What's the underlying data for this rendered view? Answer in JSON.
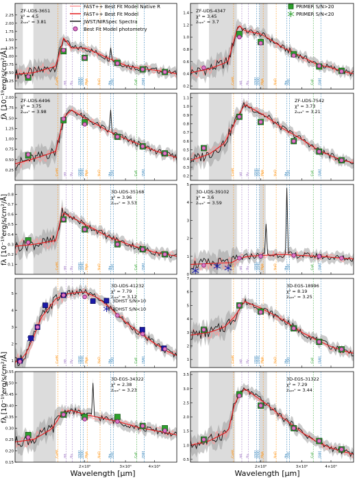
{
  "figure": {
    "ylabel": "fλ [10⁻¹⁹erg/s/cm²/Å]",
    "xlabel": "Wavelength [μm]",
    "xtick_labels": [
      "2×10⁰",
      "3×10⁰",
      "4×10⁰"
    ],
    "lines": [
      {
        "label": "CaHK",
        "x": 1.53,
        "color": "#ff8c00"
      },
      {
        "label": "Hδ",
        "x": 1.66,
        "color": "#9467bd"
      },
      {
        "label": "Hγ",
        "x": 1.77,
        "color": "#9467bd"
      },
      {
        "label": "[OIII]",
        "x": 1.92,
        "color": "#1f77b4"
      },
      {
        "label": "[OIII]",
        "x": 1.97,
        "color": "#1f77b4"
      },
      {
        "label": "Mgb",
        "x": 2.05,
        "color": "#ff8c00"
      },
      {
        "label": "NaD",
        "x": 2.33,
        "color": "#ff8c00"
      },
      {
        "label": "Hα",
        "x": 2.59,
        "color": "#1f77b4"
      },
      {
        "label": "[SII]",
        "x": 2.66,
        "color": "#1f77b4"
      },
      {
        "label": "CaII",
        "x": 3.36,
        "color": "#2ca02c"
      },
      {
        "label": "[SIII]",
        "x": 3.62,
        "color": "#1f77b4"
      }
    ],
    "colors": {
      "data": "#111111",
      "data_err": "#9e9e9e",
      "native": "#ff9a9a",
      "model": "#e41a1c",
      "phot_face": "#e377c2",
      "phot_edge": "#7a1f7a",
      "primer_face": "#2ca02c",
      "primer_edge": "#115511",
      "dhst": "#1a1aa8",
      "shade": "#dcdcdc"
    }
  },
  "legends": {
    "main": [
      "FAST++ Best Fit Model Native R",
      "FAST++ Best Fit Model",
      "JWST/NIRSpec Spectra",
      "Best Fit Model photometry"
    ],
    "primer": [
      "PRIMER S/N>20",
      "PRIMER S/N<20"
    ],
    "dhst": [
      "3DHST  S/N>10",
      "3DHST  S/N<10"
    ]
  },
  "chart_data": [
    {
      "type": "line",
      "id": "ZF-UDS-3651",
      "chi2": "4.5",
      "zspec": "3.81",
      "ylim": [
        0.0,
        2.6
      ],
      "yticks": [
        "0.25",
        "0.50",
        "0.75",
        "1.00",
        "1.25",
        "1.50",
        "1.75",
        "2.00",
        "2.25"
      ],
      "x": [
        1.0,
        1.2,
        1.5,
        1.62,
        1.75,
        2.0,
        2.5,
        3.0,
        3.5,
        4.0,
        4.5,
        5.0
      ],
      "y": [
        0.45,
        0.5,
        0.7,
        1.55,
        1.25,
        1.25,
        0.95,
        0.72,
        0.62,
        0.58,
        0.52,
        0.47
      ],
      "shade": [
        [
          1.0,
          1.08
        ],
        [
          1.2,
          1.6
        ]
      ],
      "primer": [
        [
          1.14,
          0.35
        ],
        [
          1.62,
          1.15
        ],
        [
          2.0,
          0.95
        ],
        [
          2.77,
          0.8
        ],
        [
          3.56,
          0.6
        ],
        [
          4.44,
          0.52
        ]
      ],
      "phot": [
        [
          1.14,
          0.38
        ],
        [
          1.62,
          1.18
        ],
        [
          2.0,
          0.95
        ],
        [
          2.77,
          0.78
        ],
        [
          3.56,
          0.6
        ],
        [
          4.44,
          0.52
        ]
      ],
      "emission": [
        [
          2.58,
          1.25
        ]
      ]
    },
    {
      "type": "line",
      "id": "ZF-UDS-4347",
      "chi2": "3.45",
      "zspec": "3.7",
      "ylim": [
        0.15,
        1.55
      ],
      "yticks": [
        "0.2",
        "0.4",
        "0.6",
        "0.8",
        "1.0",
        "1.2",
        "1.4"
      ],
      "x": [
        1.0,
        1.2,
        1.45,
        1.6,
        1.72,
        2.0,
        2.5,
        3.0,
        3.5,
        4.0,
        4.5,
        5.0
      ],
      "y": [
        0.42,
        0.48,
        0.6,
        1.2,
        1.1,
        1.05,
        0.82,
        0.68,
        0.55,
        0.5,
        0.44,
        0.4
      ],
      "shade": [
        [
          1.0,
          1.08
        ],
        [
          1.2,
          1.58
        ],
        [
          1.98,
          2.14
        ]
      ],
      "primer": [
        [
          1.62,
          1.05
        ],
        [
          2.0,
          0.92
        ],
        [
          2.77,
          0.72
        ],
        [
          3.56,
          0.52
        ],
        [
          4.44,
          0.45
        ]
      ],
      "phot": [
        [
          1.14,
          0.5
        ],
        [
          1.62,
          1.0
        ],
        [
          2.0,
          0.9
        ],
        [
          2.77,
          0.7
        ],
        [
          3.56,
          0.53
        ],
        [
          4.44,
          0.44
        ]
      ],
      "emission": []
    },
    {
      "type": "line",
      "id": "ZF-UDS-6496",
      "chi2": "3.75",
      "zspec": "3.98",
      "ylim": [
        0.0,
        2.1
      ],
      "yticks": [
        "0.25",
        "0.50",
        "0.75",
        "1.00",
        "1.25",
        "1.50",
        "1.75",
        "2.00"
      ],
      "x": [
        1.0,
        1.2,
        1.5,
        1.62,
        1.75,
        2.0,
        2.5,
        3.0,
        3.5,
        4.0,
        4.5,
        5.0
      ],
      "y": [
        0.4,
        0.52,
        0.7,
        1.5,
        1.7,
        1.5,
        1.2,
        1.0,
        0.85,
        0.72,
        0.62,
        0.55
      ],
      "shade": [
        [
          1.0,
          1.08
        ],
        [
          1.2,
          1.6
        ]
      ],
      "primer": [
        [
          1.14,
          0.6
        ],
        [
          1.62,
          1.45
        ],
        [
          2.0,
          1.4
        ],
        [
          2.77,
          1.05
        ],
        [
          3.56,
          0.82
        ],
        [
          4.44,
          0.65
        ]
      ],
      "phot": [
        [
          1.14,
          0.62
        ],
        [
          1.62,
          1.48
        ],
        [
          2.0,
          1.35
        ],
        [
          2.77,
          1.05
        ],
        [
          3.56,
          0.82
        ],
        [
          4.44,
          0.65
        ]
      ],
      "emission": [
        [
          2.58,
          1.7
        ]
      ]
    },
    {
      "type": "line",
      "id": "ZF-UDS-7542",
      "chi2": "3.73",
      "zspec": "3.21",
      "ylim": [
        0.15,
        1.15
      ],
      "yticks": [
        "0.2",
        "0.3",
        "0.4",
        "0.5",
        "0.6",
        "0.7",
        "0.8",
        "0.9",
        "1.0",
        "1.1"
      ],
      "x": [
        1.0,
        1.2,
        1.4,
        1.55,
        1.7,
        2.0,
        2.5,
        3.0,
        3.5,
        4.0,
        4.5,
        5.0
      ],
      "y": [
        0.38,
        0.45,
        0.58,
        0.82,
        1.02,
        0.92,
        0.74,
        0.62,
        0.5,
        0.43,
        0.38,
        0.35
      ],
      "shade": [
        [
          1.0,
          1.08
        ],
        [
          1.2,
          1.5
        ]
      ],
      "primer": [
        [
          1.14,
          0.52
        ],
        [
          1.62,
          0.88
        ],
        [
          2.0,
          0.82
        ],
        [
          2.77,
          0.6
        ],
        [
          3.56,
          0.48
        ],
        [
          4.44,
          0.38
        ]
      ],
      "phot": [
        [
          1.14,
          0.52
        ],
        [
          1.62,
          0.88
        ],
        [
          2.0,
          0.82
        ],
        [
          2.77,
          0.6
        ],
        [
          3.56,
          0.48
        ],
        [
          4.44,
          0.38
        ]
      ],
      "emission": [
        [
          2.18,
          0.9
        ]
      ]
    },
    {
      "type": "line",
      "id": "3D-UDS-35168",
      "chi2": "3.96",
      "zspec": "3.53",
      "ylim": [
        0.0,
        0.9
      ],
      "yticks": [
        "0.1",
        "0.2",
        "0.3",
        "0.4",
        "0.5",
        "0.6",
        "0.7",
        "0.8"
      ],
      "x": [
        1.0,
        1.2,
        1.5,
        1.6,
        1.72,
        2.0,
        2.5,
        3.0,
        3.5,
        4.0,
        4.5,
        5.0
      ],
      "y": [
        0.28,
        0.3,
        0.34,
        0.62,
        0.58,
        0.5,
        0.38,
        0.31,
        0.26,
        0.22,
        0.2,
        0.18
      ],
      "shade": [
        [
          1.0,
          1.08
        ],
        [
          1.2,
          1.56
        ]
      ],
      "primer": [
        [
          1.14,
          0.34
        ],
        [
          1.62,
          0.55
        ],
        [
          2.0,
          0.45
        ],
        [
          2.77,
          0.3
        ],
        [
          3.56,
          0.25
        ],
        [
          4.44,
          0.2
        ]
      ],
      "phot": [
        [
          1.14,
          0.32
        ],
        [
          1.62,
          0.55
        ],
        [
          2.0,
          0.45
        ],
        [
          2.77,
          0.3
        ],
        [
          3.56,
          0.25
        ],
        [
          4.44,
          0.2
        ]
      ],
      "emission": []
    },
    {
      "type": "line",
      "id": "3D-UDS-39102",
      "chi2": "3.6",
      "zspec": "3.59",
      "ylim": [
        0.0,
        5.0
      ],
      "yticks": [
        "0",
        "1",
        "2",
        "3",
        "4",
        "5"
      ],
      "x": [
        1.0,
        1.2,
        1.5,
        1.6,
        1.75,
        2.0,
        2.5,
        3.0,
        3.5,
        4.0,
        4.5,
        5.0
      ],
      "y": [
        0.55,
        0.6,
        0.65,
        0.85,
        1.0,
        1.05,
        1.1,
        1.05,
        1.0,
        0.95,
        0.9,
        0.85
      ],
      "shade": [
        [
          1.0,
          1.08
        ],
        [
          1.2,
          1.58
        ],
        [
          1.98,
          2.1
        ]
      ],
      "primer": [],
      "phot": [
        [
          1.14,
          0.5
        ],
        [
          1.62,
          0.9
        ],
        [
          2.0,
          1.0
        ],
        [
          2.77,
          1.05
        ],
        [
          3.56,
          1.0
        ],
        [
          4.44,
          0.9
        ]
      ],
      "dhst_low": [
        [
          1.05,
          0.2
        ],
        [
          1.3,
          0.45
        ],
        [
          1.45,
          0.35
        ]
      ],
      "emission": [
        [
          2.58,
          4.8
        ],
        [
          2.1,
          2.8
        ]
      ]
    },
    {
      "type": "line",
      "id": "3D-UDS-41232",
      "chi2": "7.79",
      "zspec": "3.12",
      "ylim": [
        0.6,
        5.9
      ],
      "yticks": [
        "1",
        "2",
        "3",
        "4",
        "5"
      ],
      "x": [
        1.0,
        1.1,
        1.2,
        1.3,
        1.5,
        1.7,
        2.0,
        2.3,
        2.6,
        3.0,
        3.5,
        4.0,
        4.5,
        5.0
      ],
      "y": [
        0.9,
        1.3,
        2.4,
        3.6,
        4.7,
        5.0,
        5.1,
        4.7,
        4.1,
        3.3,
        2.6,
        2.05,
        1.6,
        1.3
      ],
      "shade": [
        [
          1.0,
          1.08
        ]
      ],
      "primer": [],
      "phot": [
        [
          1.05,
          0.95
        ],
        [
          1.25,
          3.0
        ],
        [
          1.62,
          4.9
        ],
        [
          2.0,
          4.8
        ],
        [
          2.77,
          3.7
        ],
        [
          3.56,
          2.6
        ],
        [
          4.44,
          1.7
        ]
      ],
      "dhst": [
        [
          1.05,
          1.0
        ],
        [
          1.17,
          2.35
        ],
        [
          1.25,
          3.0
        ],
        [
          1.35,
          4.3
        ],
        [
          1.62,
          4.9
        ],
        [
          2.17,
          4.55
        ],
        [
          3.55,
          2.85
        ],
        [
          4.4,
          1.75
        ]
      ],
      "dhst_low": [
        [
          1.17,
          2.3
        ]
      ],
      "emission": []
    },
    {
      "type": "line",
      "id": "3D-EGS-18996",
      "chi2": "8.19",
      "zspec": "3.25",
      "ylim": [
        0.4,
        7.0
      ],
      "yticks": [
        "1",
        "2",
        "3",
        "4",
        "5",
        "6",
        "7"
      ],
      "x": [
        1.0,
        1.2,
        1.4,
        1.55,
        1.7,
        2.0,
        2.5,
        3.0,
        3.5,
        4.0,
        4.5,
        5.0
      ],
      "y": [
        2.8,
        3.0,
        3.4,
        4.2,
        5.3,
        4.8,
        3.9,
        3.0,
        2.4,
        1.95,
        1.65,
        1.45
      ],
      "shade": [
        [
          1.0,
          1.08
        ],
        [
          1.2,
          1.5
        ]
      ],
      "primer": [
        [
          1.14,
          3.2
        ],
        [
          1.62,
          5.0
        ],
        [
          2.0,
          4.55
        ],
        [
          2.77,
          3.3
        ],
        [
          3.56,
          2.3
        ],
        [
          4.44,
          1.75
        ]
      ],
      "phot": [
        [
          1.14,
          3.2
        ],
        [
          1.62,
          5.0
        ],
        [
          2.0,
          4.5
        ],
        [
          2.77,
          3.3
        ],
        [
          3.56,
          2.3
        ],
        [
          4.44,
          1.75
        ]
      ],
      "emission": []
    },
    {
      "type": "line",
      "id": "3D-EGS-34322",
      "chi2": "2.38",
      "zspec": "3.23",
      "ylim": [
        0.15,
        0.55
      ],
      "yticks": [
        "0.15",
        "0.20",
        "0.25",
        "0.30",
        "0.35",
        "0.40",
        "0.45",
        "0.50",
        "0.55"
      ],
      "x": [
        1.0,
        1.2,
        1.45,
        1.6,
        1.75,
        2.0,
        2.5,
        3.0,
        3.5,
        4.0,
        4.5,
        5.0
      ],
      "y": [
        0.24,
        0.25,
        0.3,
        0.37,
        0.38,
        0.36,
        0.34,
        0.32,
        0.3,
        0.29,
        0.28,
        0.27
      ],
      "shade": [
        [
          1.0,
          1.08
        ],
        [
          1.2,
          1.5
        ]
      ],
      "primer": [
        [
          1.14,
          0.27
        ],
        [
          1.62,
          0.36
        ],
        [
          2.0,
          0.35
        ],
        [
          2.77,
          0.35
        ],
        [
          3.56,
          0.31
        ],
        [
          4.44,
          0.3
        ]
      ],
      "phot": [
        [
          1.14,
          0.26
        ],
        [
          1.62,
          0.36
        ],
        [
          2.0,
          0.34
        ],
        [
          2.77,
          0.33
        ],
        [
          3.56,
          0.31
        ],
        [
          4.44,
          0.29
        ]
      ],
      "emission": [
        [
          2.17,
          0.5
        ]
      ]
    },
    {
      "type": "line",
      "id": "3D-EGS-31322",
      "chi2": "7.29",
      "zspec": "3.44",
      "ylim": [
        0.4,
        3.6
      ],
      "yticks": [
        "0.5",
        "1.0",
        "1.5",
        "2.0",
        "2.5",
        "3.0",
        "3.5"
      ],
      "x": [
        1.0,
        1.2,
        1.45,
        1.55,
        1.7,
        2.0,
        2.5,
        3.0,
        3.5,
        4.0,
        4.5,
        5.0
      ],
      "y": [
        1.0,
        1.15,
        1.5,
        2.5,
        3.0,
        2.6,
        1.95,
        1.45,
        1.1,
        0.9,
        0.78,
        0.68
      ],
      "shade": [
        [
          1.0,
          1.08
        ],
        [
          1.2,
          1.55
        ],
        [
          1.98,
          2.13
        ]
      ],
      "primer": [
        [
          1.14,
          1.2
        ],
        [
          1.62,
          2.8
        ],
        [
          2.0,
          2.4
        ],
        [
          2.77,
          1.6
        ],
        [
          3.56,
          1.15
        ],
        [
          4.44,
          0.85
        ]
      ],
      "phot": [
        [
          1.14,
          1.2
        ],
        [
          1.62,
          2.75
        ],
        [
          2.0,
          2.4
        ],
        [
          2.77,
          1.6
        ],
        [
          3.56,
          1.15
        ],
        [
          4.44,
          0.85
        ]
      ],
      "emission": []
    }
  ]
}
